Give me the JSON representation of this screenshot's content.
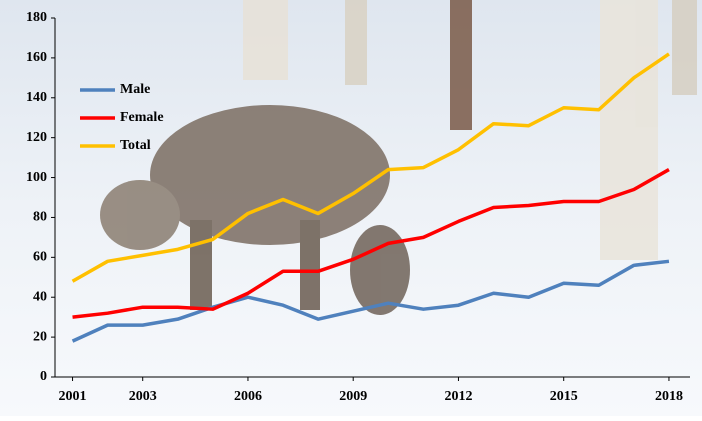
{
  "chart_data": {
    "type": "line",
    "x": [
      2001,
      2002,
      2003,
      2004,
      2005,
      2006,
      2007,
      2008,
      2009,
      2010,
      2011,
      2012,
      2013,
      2014,
      2015,
      2016,
      2017,
      2018
    ],
    "series": [
      {
        "name": "Male",
        "color": "#4f81bd",
        "values": [
          18,
          26,
          26,
          29,
          35,
          40,
          36,
          29,
          33,
          37,
          34,
          36,
          42,
          40,
          47,
          46,
          56,
          58
        ]
      },
      {
        "name": "Female",
        "color": "#ff0000",
        "values": [
          30,
          32,
          35,
          35,
          34,
          42,
          53,
          53,
          59,
          67,
          70,
          78,
          85,
          86,
          88,
          88,
          94,
          104
        ]
      },
      {
        "name": "Total",
        "color": "#ffc000",
        "values": [
          48,
          58,
          61,
          64,
          69,
          82,
          89,
          82,
          92,
          104,
          105,
          114,
          127,
          126,
          135,
          134,
          150,
          162
        ]
      }
    ],
    "xlim": [
      2000.5,
      2018.6
    ],
    "xticks": [
      2001,
      2003,
      2006,
      2009,
      2012,
      2015,
      2018
    ],
    "ylim": [
      0,
      180
    ],
    "yticks": [
      0,
      20,
      40,
      60,
      80,
      100,
      120,
      140,
      160,
      180
    ],
    "legend": "top-left"
  }
}
